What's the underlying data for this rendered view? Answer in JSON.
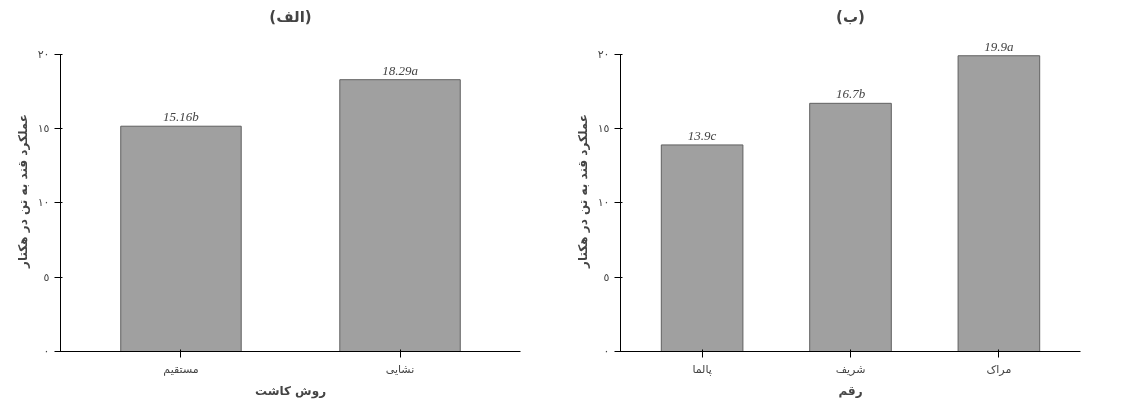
{
  "chart_data": [
    {
      "type": "bar",
      "title": "(الف)",
      "xlabel": "روش کاشت",
      "ylabel": "عملکرد قند به تن در هکتار",
      "categories": [
        "مستقیم",
        "نشایی"
      ],
      "values": [
        15.16,
        18.29
      ],
      "value_labels": [
        "15.16b",
        "18.29a"
      ],
      "color": "#a0a0a0",
      "ylim": [
        0,
        20
      ],
      "yticks": [
        {
          "value": 0,
          "label": "٠"
        },
        {
          "value": 5,
          "label": "٥"
        },
        {
          "value": 10,
          "label": "١٠"
        },
        {
          "value": 15,
          "label": "١٥"
        },
        {
          "value": 20,
          "label": "٢٠"
        }
      ],
      "grid": false
    },
    {
      "type": "bar",
      "title": "(ب)",
      "xlabel": "رقم",
      "ylabel": "عملکرد قند به تن در هکتار",
      "categories": [
        "پالما",
        "شریف",
        "مراک"
      ],
      "values": [
        13.9,
        16.7,
        19.9
      ],
      "value_labels": [
        "13.9c",
        "16.7b",
        "19.9a"
      ],
      "color": "#a0a0a0",
      "ylim": [
        0,
        20
      ],
      "yticks": [
        {
          "value": 0,
          "label": "٠"
        },
        {
          "value": 5,
          "label": "٥"
        },
        {
          "value": 10,
          "label": "١٠"
        },
        {
          "value": 15,
          "label": "١٥"
        },
        {
          "value": 20,
          "label": "٢٠"
        }
      ],
      "grid": false
    }
  ]
}
